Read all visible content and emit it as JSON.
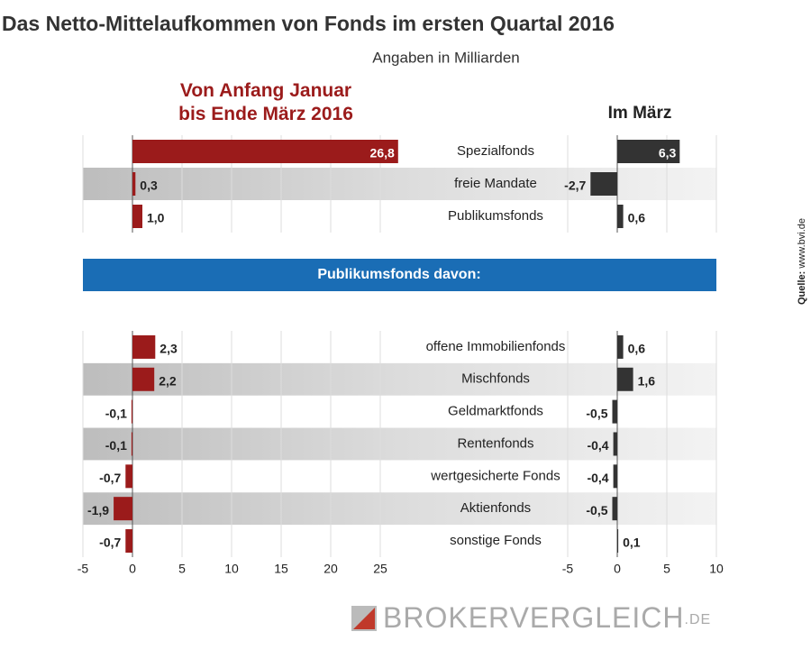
{
  "title": "Das Netto-Mittelaufkommen von Fonds im ersten Quartal 2016",
  "subtitle": "Angaben in Milliarden",
  "source_label": "Quelle:",
  "source": "www.bvi.de",
  "logo": {
    "name": "BROKERVERGLEICH",
    "suffix": ".DE"
  },
  "chart_data": [
    {
      "type": "bar",
      "orientation": "horizontal",
      "categories": [
        "Spezialfonds",
        "freie Mandate",
        "Publikumsfonds"
      ],
      "xlim": [
        -5,
        30
      ],
      "xticks": [
        -5,
        0,
        5,
        10,
        15,
        20,
        25
      ],
      "x2lim": [
        -5,
        10
      ],
      "x2ticks": [
        -5,
        0,
        5,
        10
      ],
      "series": [
        {
          "name": "Von Anfang Januar\nbis Ende März 2016",
          "color": "#9b1b1b",
          "values": [
            26.8,
            0.3,
            1.0
          ],
          "value_labels": [
            "26,8",
            "0,3",
            "1,0"
          ]
        },
        {
          "name": "Im März",
          "color": "#333333",
          "axis": "x2",
          "values": [
            6.3,
            -2.7,
            0.6
          ],
          "value_labels": [
            "6,3",
            "-2,7",
            "0,6"
          ]
        }
      ]
    },
    {
      "type": "bar",
      "orientation": "horizontal",
      "title": "Publikumsfonds davon:",
      "categories": [
        "offene Immobilienfonds",
        "Mischfonds",
        "Geldmarktfonds",
        "Rentenfonds",
        "wertgesicherte Fonds",
        "Aktienfonds",
        "sonstige Fonds"
      ],
      "xlim": [
        -5,
        30
      ],
      "xticks": [
        -5,
        0,
        5,
        10,
        15,
        20,
        25
      ],
      "x2lim": [
        -5,
        10
      ],
      "x2ticks": [
        -5,
        0,
        5,
        10
      ],
      "series": [
        {
          "color": "#9b1b1b",
          "values": [
            2.3,
            2.2,
            -0.1,
            -0.1,
            -0.7,
            -1.9,
            -0.7
          ],
          "value_labels": [
            "2,3",
            "2,2",
            "-0,1",
            "-0,1",
            "-0,7",
            "-1,9",
            "-0,7"
          ]
        },
        {
          "color": "#333333",
          "axis": "x2",
          "values": [
            0.6,
            1.6,
            -0.5,
            -0.4,
            -0.4,
            -0.5,
            0.1
          ],
          "value_labels": [
            "0,6",
            "1,6",
            "-0,5",
            "-0,4",
            "-0,4",
            "-0,5",
            "0,1"
          ]
        }
      ]
    }
  ]
}
